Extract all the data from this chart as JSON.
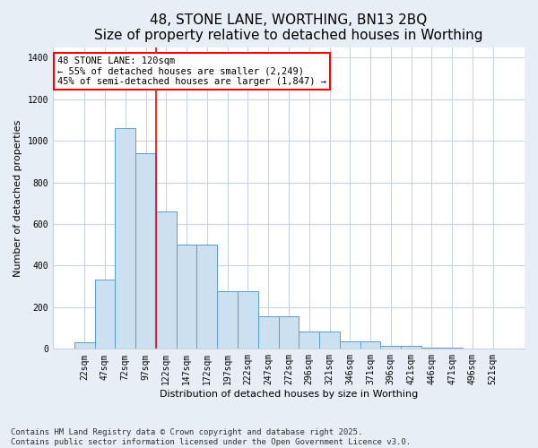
{
  "title": "48, STONE LANE, WORTHING, BN13 2BQ",
  "subtitle": "Size of property relative to detached houses in Worthing",
  "xlabel": "Distribution of detached houses by size in Worthing",
  "ylabel": "Number of detached properties",
  "categories": [
    "22sqm",
    "47sqm",
    "72sqm",
    "97sqm",
    "122sqm",
    "147sqm",
    "172sqm",
    "197sqm",
    "222sqm",
    "247sqm",
    "272sqm",
    "296sqm",
    "321sqm",
    "346sqm",
    "371sqm",
    "396sqm",
    "421sqm",
    "446sqm",
    "471sqm",
    "496sqm",
    "521sqm"
  ],
  "values": [
    30,
    335,
    1060,
    940,
    660,
    500,
    500,
    275,
    275,
    155,
    155,
    85,
    85,
    35,
    35,
    15,
    15,
    5,
    5,
    0,
    0
  ],
  "bar_color": "#cde0f0",
  "bar_edge_color": "#5b9bd5",
  "red_line_index": 4,
  "annotation_text": "48 STONE LANE: 120sqm\n← 55% of detached houses are smaller (2,249)\n45% of semi-detached houses are larger (1,847) →",
  "annotation_box_color": "white",
  "annotation_box_edge_color": "red",
  "ylim": [
    0,
    1450
  ],
  "yticks": [
    0,
    200,
    400,
    600,
    800,
    1000,
    1200,
    1400
  ],
  "footnote1": "Contains HM Land Registry data © Crown copyright and database right 2025.",
  "footnote2": "Contains public sector information licensed under the Open Government Licence v3.0.",
  "fig_background_color": "#e8eef5",
  "plot_background_color": "white",
  "grid_color": "#c8d4e3",
  "title_fontsize": 11,
  "axis_label_fontsize": 8,
  "tick_fontsize": 7,
  "annotation_fontsize": 7.5,
  "footnote_fontsize": 6.5
}
